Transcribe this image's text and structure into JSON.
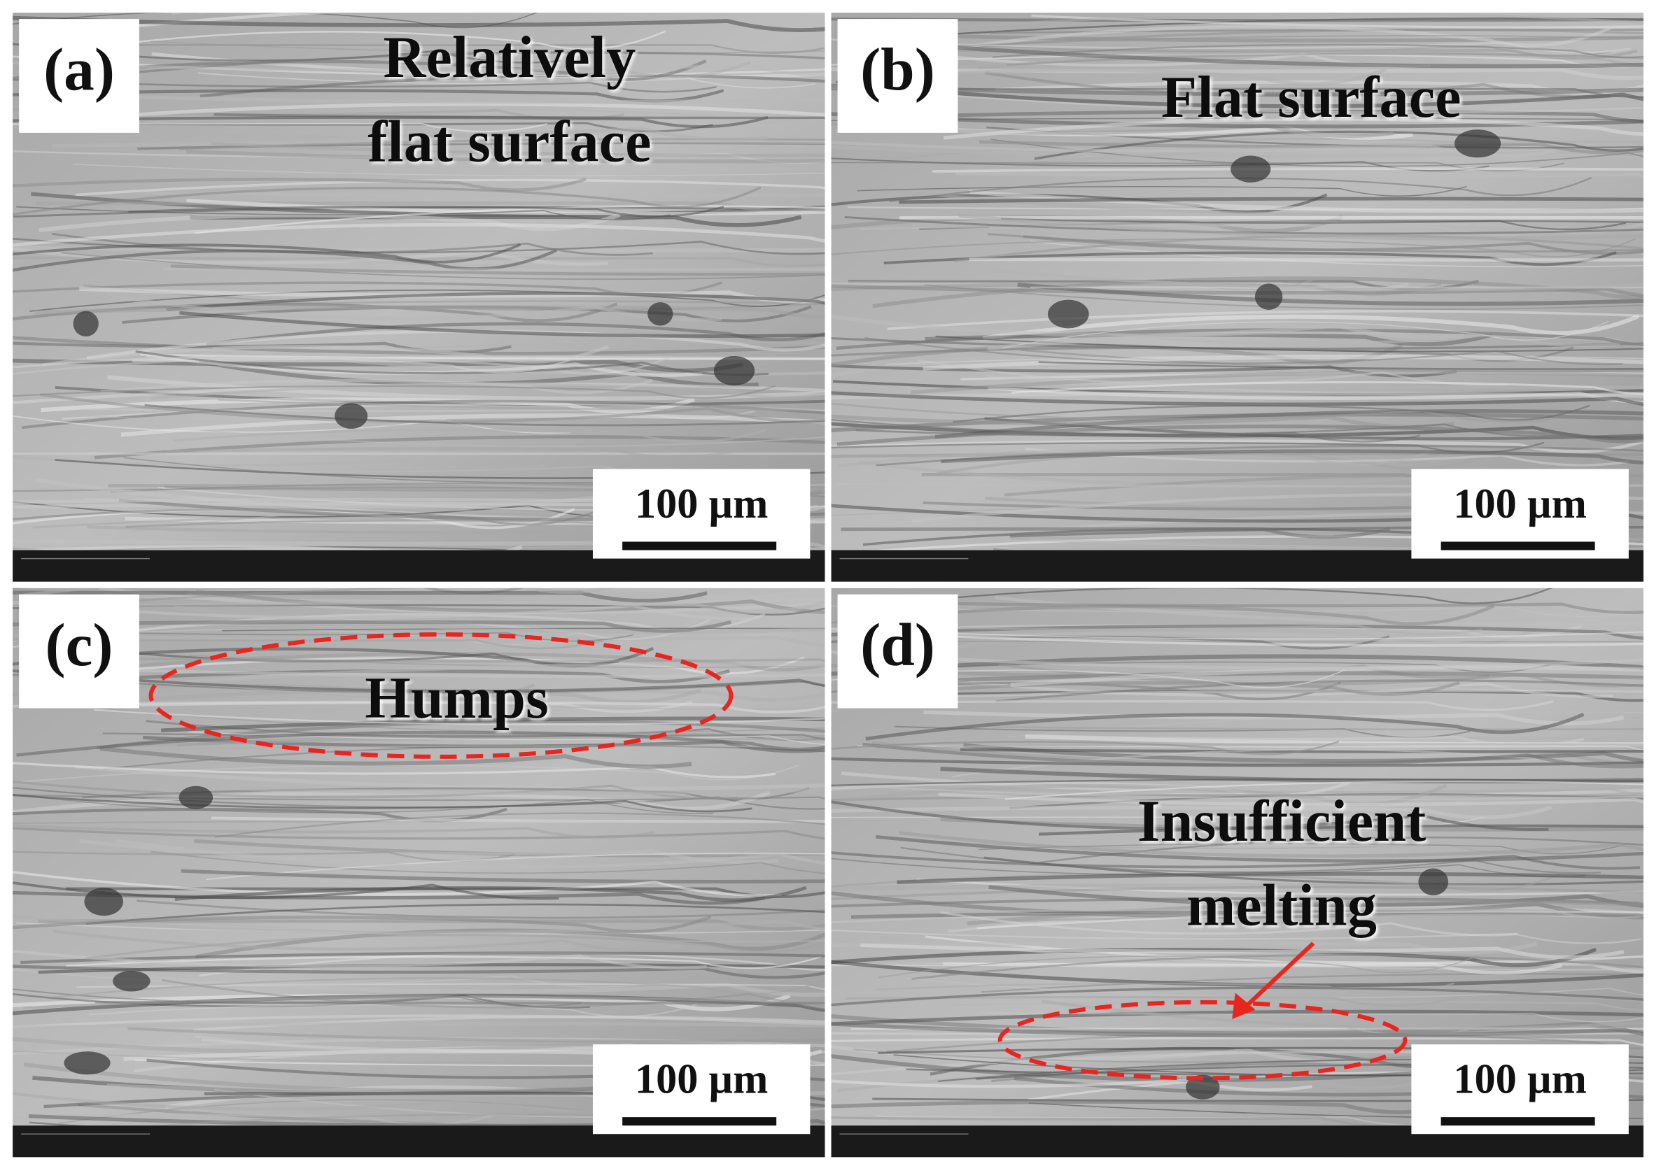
{
  "panels": [
    {
      "label": "(a)",
      "annotation": [
        "Relatively",
        "flat surface"
      ],
      "scale_bar": "100 µm"
    },
    {
      "label": "(b)",
      "annotation": [
        "Flat surface"
      ],
      "scale_bar": "100 µm"
    },
    {
      "label": "(c)",
      "annotation": [
        "Humps"
      ],
      "scale_bar": "100 µm"
    },
    {
      "label": "(d)",
      "annotation": [
        "Insufficient",
        "melting"
      ],
      "scale_bar": "100 µm"
    }
  ]
}
